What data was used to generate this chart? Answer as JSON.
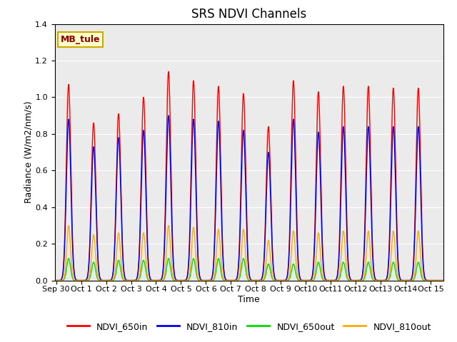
{
  "title": "SRS NDVI Channels",
  "xlabel": "Time",
  "ylabel": "Radiance (W/m2/nm/s)",
  "annotation": "MB_tule",
  "ylim": [
    0,
    1.4
  ],
  "xlim_days": [
    -0.05,
    15.5
  ],
  "yticks": [
    0.0,
    0.2,
    0.4,
    0.6,
    0.8,
    1.0,
    1.2,
    1.4
  ],
  "xtick_labels": [
    "Sep 30",
    "Oct 1",
    "Oct 2",
    "Oct 3",
    "Oct 4",
    "Oct 5",
    "Oct 6",
    "Oct 7",
    "Oct 8",
    "Oct 9",
    "Oct 10",
    "Oct 11",
    "Oct 12",
    "Oct 13",
    "Oct 14",
    "Oct 15"
  ],
  "xtick_positions": [
    0,
    1,
    2,
    3,
    4,
    5,
    6,
    7,
    8,
    9,
    10,
    11,
    12,
    13,
    14,
    15
  ],
  "colors": {
    "NDVI_650in": "#ff0000",
    "NDVI_810in": "#0000ee",
    "NDVI_650out": "#00dd00",
    "NDVI_810out": "#ffaa00"
  },
  "peak_650in": [
    1.07,
    0.86,
    0.91,
    1.0,
    1.14,
    1.09,
    1.06,
    1.02,
    0.84,
    1.09,
    1.03,
    1.06,
    1.06,
    1.05,
    1.05
  ],
  "peak_810in": [
    0.88,
    0.73,
    0.78,
    0.82,
    0.9,
    0.88,
    0.87,
    0.82,
    0.7,
    0.88,
    0.81,
    0.84,
    0.84,
    0.84,
    0.84
  ],
  "peak_650out": [
    0.12,
    0.1,
    0.11,
    0.11,
    0.12,
    0.12,
    0.12,
    0.12,
    0.09,
    0.09,
    0.1,
    0.1,
    0.1,
    0.1,
    0.1
  ],
  "peak_810out": [
    0.3,
    0.25,
    0.26,
    0.26,
    0.3,
    0.29,
    0.28,
    0.28,
    0.22,
    0.27,
    0.26,
    0.27,
    0.27,
    0.27,
    0.27
  ],
  "sigma_in": 0.09,
  "sigma_out": 0.075,
  "background_color": "#ebebeb",
  "title_fontsize": 12,
  "label_fontsize": 9,
  "tick_fontsize": 8,
  "legend_fontsize": 9,
  "linewidth": 1.0
}
